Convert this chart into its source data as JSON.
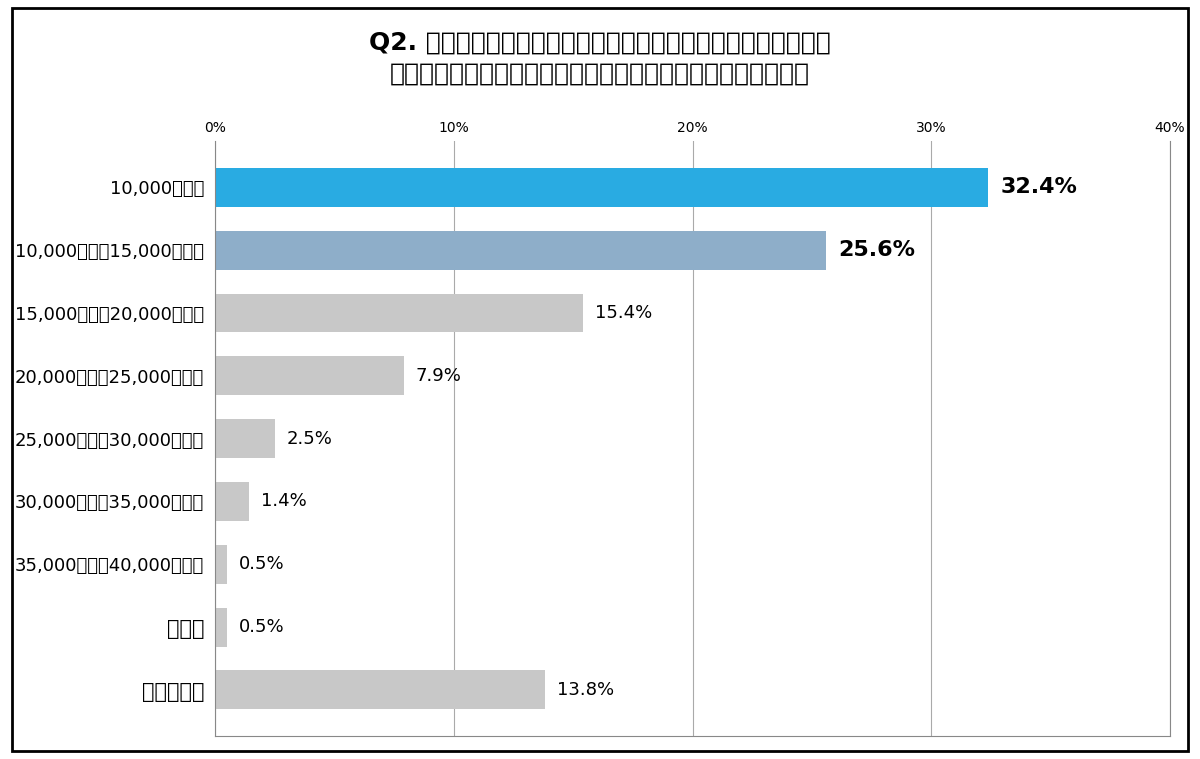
{
  "title_line1": "Q2. 学習塾などの学校外教育費について伺います。英語・数学の",
  "title_line2": "２教科指導の場合、どのぐらいの料金が妥当だと思いますか？",
  "categories": [
    "10,000円未満",
    "10,000円以上15,000円未満",
    "15,000円以上20,000円未満",
    "20,000円以上25,000円未満",
    "25,000円以上30,000円未満",
    "30,000円以上35,000円未満",
    "35,000円以上40,000円未満",
    "その他",
    "わからない"
  ],
  "values": [
    32.4,
    25.6,
    15.4,
    7.9,
    2.5,
    1.4,
    0.5,
    0.5,
    13.8
  ],
  "bar_colors": [
    "#29ABE2",
    "#8EAEC9",
    "#C8C8C8",
    "#C8C8C8",
    "#C8C8C8",
    "#C8C8C8",
    "#C8C8C8",
    "#C8C8C8",
    "#C8C8C8"
  ],
  "bold_indices": [
    0,
    1
  ],
  "xlim": [
    0,
    40
  ],
  "xticks": [
    0,
    10,
    20,
    30,
    40
  ],
  "xtick_labels": [
    "0%",
    "10%",
    "20%",
    "30%",
    "40%"
  ],
  "background_color": "#FFFFFF",
  "border_color": "#000000",
  "title_fontsize": 18,
  "bar_height": 0.62
}
